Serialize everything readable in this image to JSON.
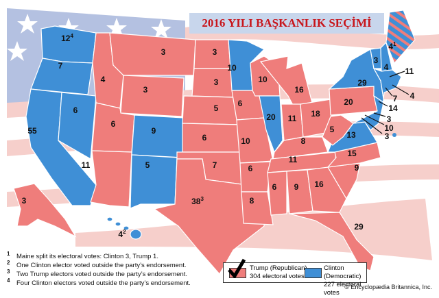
{
  "title": "2016 YILI BAŞKANLIK SEÇİMİ",
  "colors": {
    "republican": "#ef7d7b",
    "democratic": "#3f8fd6",
    "title_text": "#c8151b",
    "title_bg": "#c8d6ec"
  },
  "background": "stylized american flag (stars and stripes)",
  "states": [
    {
      "votes": "12",
      "sup": "4",
      "party": "clinton"
    },
    {
      "votes": "7",
      "party": "clinton"
    },
    {
      "votes": "55",
      "party": "clinton"
    },
    {
      "votes": "6",
      "party": "clinton"
    },
    {
      "votes": "4",
      "party": "trump"
    },
    {
      "votes": "3",
      "party": "trump"
    },
    {
      "votes": "3",
      "party": "trump"
    },
    {
      "votes": "6",
      "party": "trump"
    },
    {
      "votes": "11",
      "party": "trump"
    },
    {
      "votes": "9",
      "party": "clinton"
    },
    {
      "votes": "5",
      "party": "clinton"
    },
    {
      "votes": "3",
      "party": "trump"
    },
    {
      "votes": "3",
      "party": "trump"
    },
    {
      "votes": "5",
      "party": "trump"
    },
    {
      "votes": "6",
      "party": "trump"
    },
    {
      "votes": "7",
      "party": "trump"
    },
    {
      "votes": "38",
      "sup": "3",
      "party": "trump"
    },
    {
      "votes": "10",
      "party": "clinton"
    },
    {
      "votes": "6",
      "party": "trump"
    },
    {
      "votes": "10",
      "party": "trump"
    },
    {
      "votes": "6",
      "party": "trump"
    },
    {
      "votes": "8",
      "party": "trump"
    },
    {
      "votes": "10",
      "party": "trump"
    },
    {
      "votes": "20",
      "party": "clinton"
    },
    {
      "votes": "16",
      "party": "trump"
    },
    {
      "votes": "11",
      "party": "trump"
    },
    {
      "votes": "18",
      "party": "trump"
    },
    {
      "votes": "8",
      "party": "trump"
    },
    {
      "votes": "11",
      "party": "trump"
    },
    {
      "votes": "6",
      "party": "trump"
    },
    {
      "votes": "9",
      "party": "trump"
    },
    {
      "votes": "16",
      "party": "trump"
    },
    {
      "votes": "29",
      "party": "trump"
    },
    {
      "votes": "9",
      "party": "trump"
    },
    {
      "votes": "15",
      "party": "trump"
    },
    {
      "votes": "13",
      "party": "clinton"
    },
    {
      "votes": "5",
      "party": "trump"
    },
    {
      "votes": "20",
      "party": "trump"
    },
    {
      "votes": "29",
      "party": "clinton"
    },
    {
      "votes": "3",
      "party": "clinton"
    },
    {
      "votes": "4",
      "party": "clinton"
    },
    {
      "votes": "4",
      "sup": "1",
      "party": "split"
    },
    {
      "votes": "11",
      "party": "clinton"
    },
    {
      "votes": "4",
      "party": "clinton"
    },
    {
      "votes": "7",
      "party": "clinton"
    },
    {
      "votes": "14",
      "party": "clinton"
    },
    {
      "votes": "3",
      "party": "clinton"
    },
    {
      "votes": "10",
      "party": "clinton"
    },
    {
      "votes": "3",
      "party": "clinton"
    },
    {
      "votes": "3",
      "party": "trump"
    },
    {
      "votes": "4",
      "sup": "2",
      "party": "clinton"
    }
  ],
  "footnotes": [
    {
      "mark": "1",
      "text": "Maine split its electoral votes: Clinton 3, Trump 1."
    },
    {
      "mark": "2",
      "text": "One Clinton elector voted outside the party’s endorsement."
    },
    {
      "mark": "3",
      "text": "Two Trump electors voted outside the party’s endorsement."
    },
    {
      "mark": "4",
      "text": "Four Clinton electors voted outside the party’s endorsement."
    }
  ],
  "legend": {
    "trump": {
      "name": "Trump (Republican)",
      "votes": "304 electoral votes",
      "icon": "checkmark-icon"
    },
    "clinton": {
      "name": "Clinton (Democratic)",
      "votes": "227 electoral votes"
    }
  },
  "credit": "© Encyclopædia Britannica, Inc."
}
